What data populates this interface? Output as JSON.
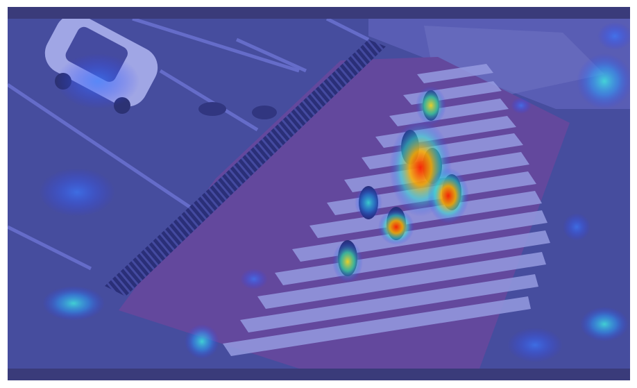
{
  "image": {
    "kind": "saliency heatmap overlay on aerial street photo",
    "colormap": "jet",
    "frame_color": "#3a3b7a",
    "base_tint": "#4a4fb5",
    "road_color": "#4d5287",
    "crosswalk_base_color": "#7a4a86",
    "stripe_color": "#c7c9ee"
  },
  "content": {
    "objects": [
      "white-car",
      "pedestrians",
      "zebra-crossing",
      "storm-drain-grate",
      "manhole-covers",
      "traffic-island",
      "sidewalk"
    ],
    "pedestrian_count": 7
  }
}
